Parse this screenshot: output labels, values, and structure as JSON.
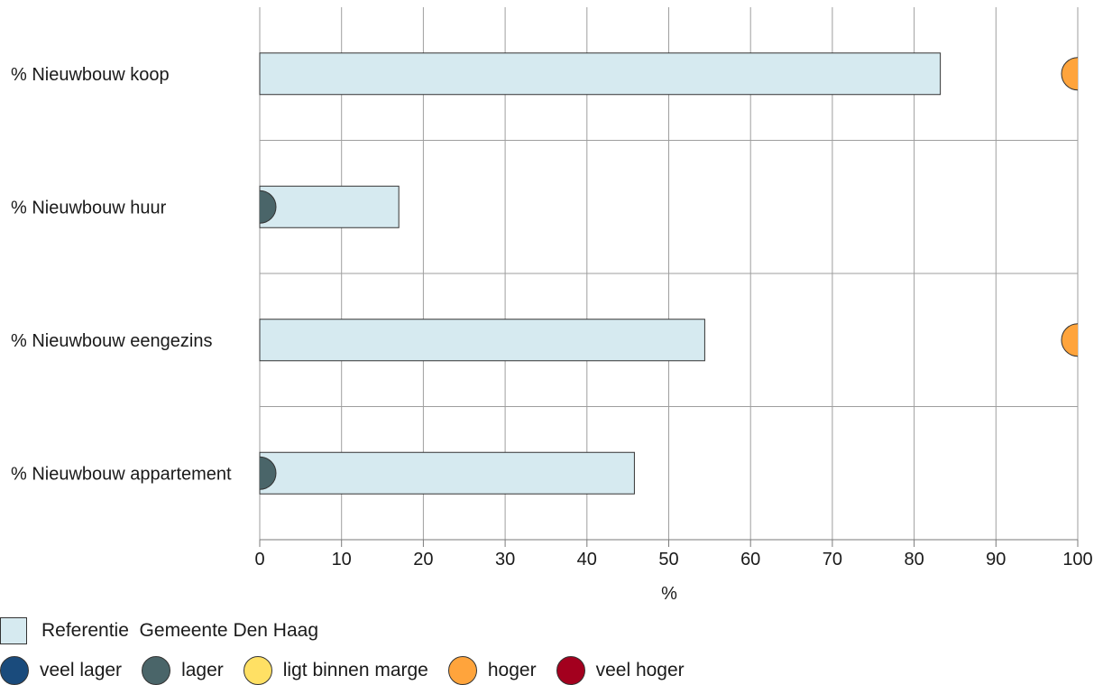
{
  "chart_data": {
    "type": "bar",
    "orientation": "horizontal",
    "categories": [
      "% Nieuwbouw koop",
      "% Nieuwbouw huur",
      "% Nieuwbouw eengezins",
      "% Nieuwbouw appartement"
    ],
    "series": [
      {
        "name": "Referentie  Gemeente Den Haag",
        "values": [
          83.2,
          17.0,
          54.4,
          45.8
        ],
        "color": "#d6eaf0"
      }
    ],
    "markers": [
      {
        "category": "% Nieuwbouw koop",
        "value": 100,
        "status": "hoger"
      },
      {
        "category": "% Nieuwbouw huur",
        "value": 0,
        "status": "lager"
      },
      {
        "category": "% Nieuwbouw eengezins",
        "value": 100,
        "status": "hoger"
      },
      {
        "category": "% Nieuwbouw appartement",
        "value": 0,
        "status": "lager"
      }
    ],
    "xlabel": "%",
    "xlim": [
      0,
      100
    ],
    "xticks": [
      0,
      10,
      20,
      30,
      40,
      50,
      60,
      70,
      80,
      90,
      100
    ],
    "grid": true,
    "legend_position": "bottom-left"
  },
  "legend": {
    "reference_label": "Referentie  Gemeente Den Haag",
    "reference_color": "#d6eaf0",
    "status_items": [
      {
        "label": "veel lager",
        "color": "#1a4b7c"
      },
      {
        "label": "lager",
        "color": "#4a6569"
      },
      {
        "label": "ligt binnen marge",
        "color": "#ffe064"
      },
      {
        "label": "hoger",
        "color": "#ffa43c"
      },
      {
        "label": "veel hoger",
        "color": "#a3001e"
      }
    ]
  },
  "status_colors": {
    "veel lager": "#1a4b7c",
    "lager": "#4a6569",
    "ligt binnen marge": "#ffe064",
    "hoger": "#ffa43c",
    "veel hoger": "#a3001e"
  }
}
